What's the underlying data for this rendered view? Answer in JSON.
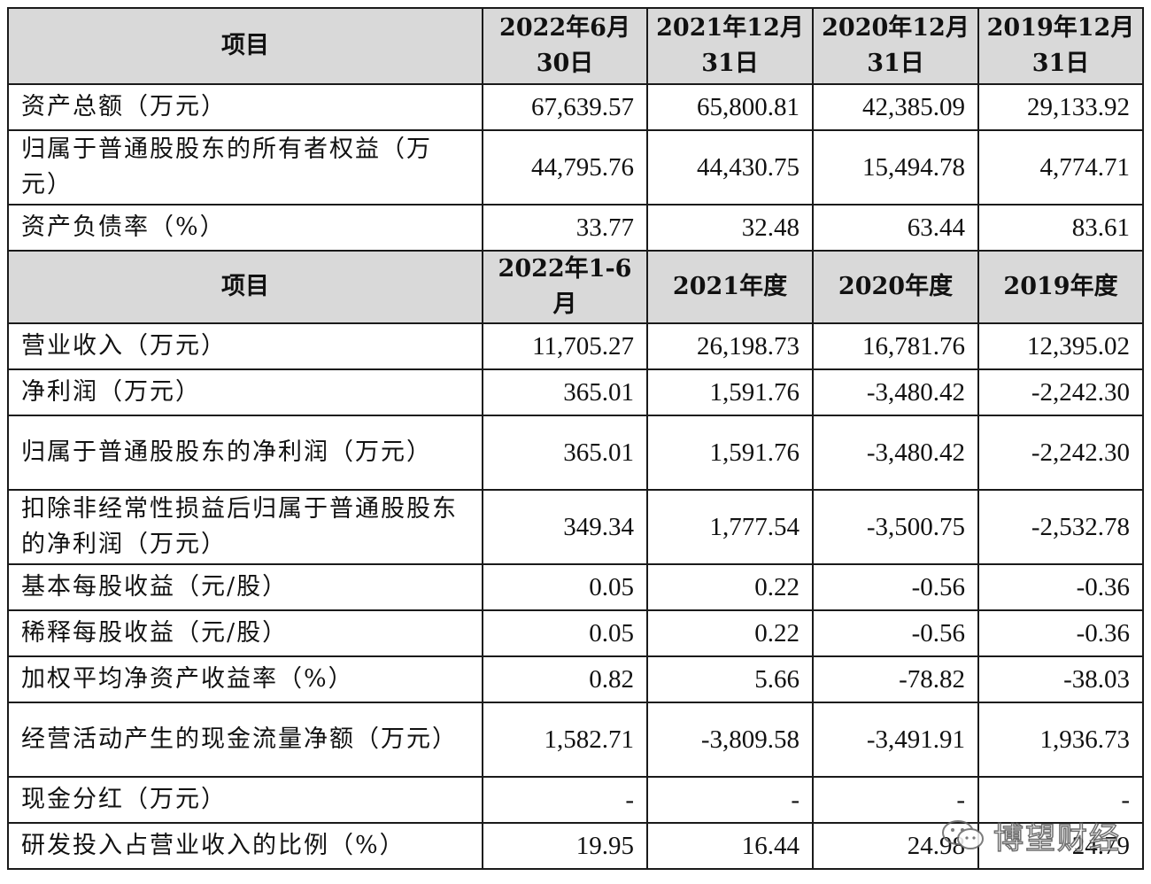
{
  "table1": {
    "header": [
      "项目",
      "2022年6月30日",
      "2021年12月31日",
      "2020年12月31日",
      "2019年12月31日"
    ],
    "rows": [
      {
        "label": "资产总额（万元）",
        "values": [
          "67,639.57",
          "65,800.81",
          "42,385.09",
          "29,133.92"
        ]
      },
      {
        "label": "归属于普通股股东的所有者权益（万元）",
        "values": [
          "44,795.76",
          "44,430.75",
          "15,494.78",
          "4,774.71"
        ]
      },
      {
        "label": "资产负债率（%）",
        "values": [
          "33.77",
          "32.48",
          "63.44",
          "83.61"
        ]
      }
    ]
  },
  "table2": {
    "header": [
      "项目",
      "2022年1-6月",
      "2021年度",
      "2020年度",
      "2019年度"
    ],
    "rows": [
      {
        "label": "营业收入（万元）",
        "values": [
          "11,705.27",
          "26,198.73",
          "16,781.76",
          "12,395.02"
        ]
      },
      {
        "label": "净利润（万元）",
        "values": [
          "365.01",
          "1,591.76",
          "-3,480.42",
          "-2,242.30"
        ]
      },
      {
        "label": "归属于普通股股东的净利润（万元）",
        "values": [
          "365.01",
          "1,591.76",
          "-3,480.42",
          "-2,242.30"
        ]
      },
      {
        "label": "扣除非经常性损益后归属于普通股股东的净利润（万元）",
        "values": [
          "349.34",
          "1,777.54",
          "-3,500.75",
          "-2,532.78"
        ]
      },
      {
        "label": "基本每股收益（元/股）",
        "values": [
          "0.05",
          "0.22",
          "-0.56",
          "-0.36"
        ]
      },
      {
        "label": "稀释每股收益（元/股）",
        "values": [
          "0.05",
          "0.22",
          "-0.56",
          "-0.36"
        ]
      },
      {
        "label": "加权平均净资产收益率（%）",
        "values": [
          "0.82",
          "5.66",
          "-78.82",
          "-38.03"
        ]
      },
      {
        "label": "经营活动产生的现金流量净额（万元）",
        "values": [
          "1,582.71",
          "-3,809.58",
          "-3,491.91",
          "1,936.73"
        ]
      },
      {
        "label": "现金分红（万元）",
        "values": [
          "-",
          "-",
          "-",
          "-"
        ]
      },
      {
        "label": "研发投入占营业收入的比例（%）",
        "values": [
          "19.95",
          "16.44",
          "24.98",
          "24.79"
        ]
      }
    ]
  },
  "watermark": {
    "text": "博望财经",
    "icon": "wechat-icon"
  }
}
